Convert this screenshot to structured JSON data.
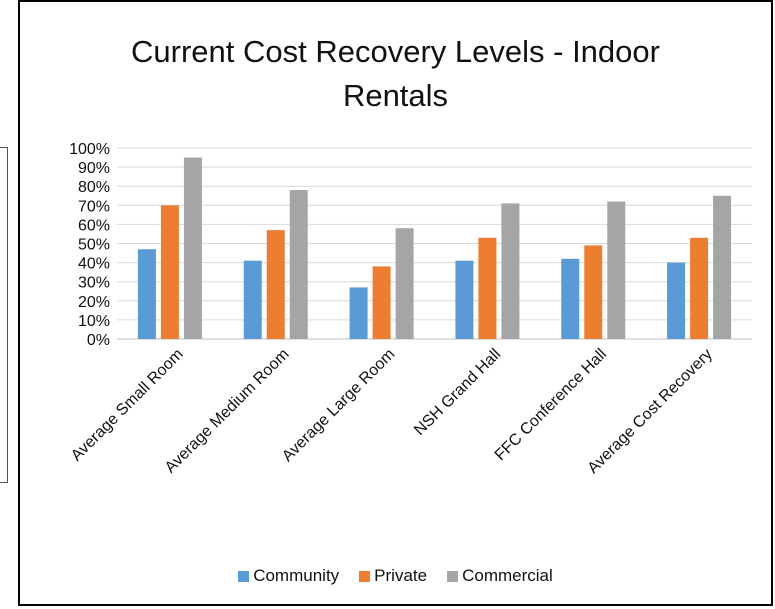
{
  "chart_data": {
    "type": "bar",
    "title": "Current Cost Recovery Levels - Indoor Rentals",
    "categories": [
      "Average Small Room",
      "Average Medium Room",
      "Average Large Room",
      "NSH Grand Hall",
      "FFC Conference Hall",
      "Average Cost Recovery"
    ],
    "series": [
      {
        "name": "Community",
        "color": "#5B9BD5",
        "values": [
          47,
          41,
          27,
          41,
          42,
          40
        ]
      },
      {
        "name": "Private",
        "color": "#ED7D31",
        "values": [
          70,
          57,
          38,
          53,
          49,
          53
        ]
      },
      {
        "name": "Commercial",
        "color": "#A5A5A5",
        "values": [
          95,
          78,
          58,
          71,
          72,
          75
        ]
      }
    ],
    "ylim": [
      0,
      100
    ],
    "yticks": [
      "0%",
      "10%",
      "20%",
      "30%",
      "40%",
      "50%",
      "60%",
      "70%",
      "80%",
      "90%",
      "100%"
    ],
    "grid": true,
    "legend_position": "bottom"
  }
}
